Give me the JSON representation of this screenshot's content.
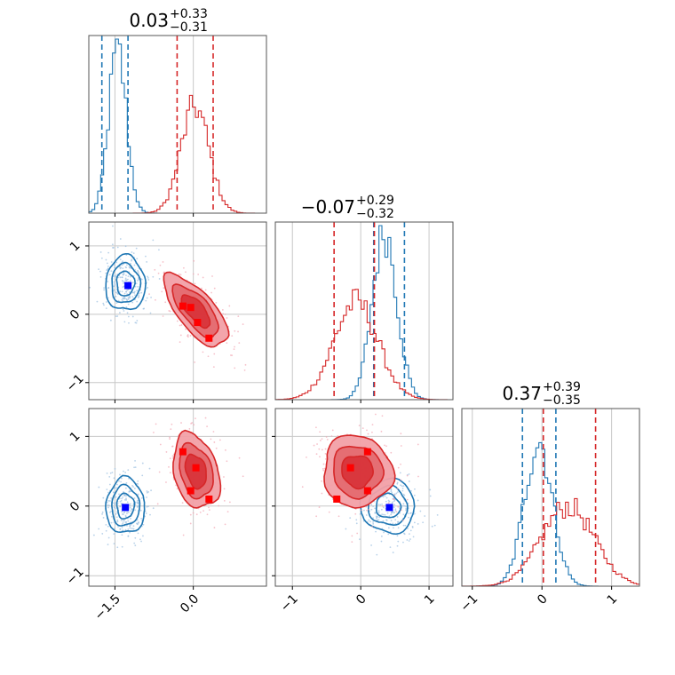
{
  "chart_data": {
    "type": "corner",
    "series": [
      {
        "name": "",
        "color": "#1f77b4",
        "marker_color": "#0000ff"
      },
      {
        "name": "",
        "color": "#d62728",
        "marker_color": "#ff0000"
      }
    ],
    "params": [
      {
        "title": {
          "median": "0.03",
          "plus": "+0.33",
          "minus": "−0.31"
        },
        "range": [
          -2.0,
          1.4
        ],
        "ticks": [
          -1.5,
          0.0
        ],
        "tick_labels": [
          "−1.5",
          "0.0"
        ],
        "quantiles": {
          "blue": [
            -1.75,
            -1.25
          ],
          "red": [
            -0.31,
            0.38
          ]
        }
      },
      {
        "title": {
          "median": "−0.07",
          "plus": "+0.29",
          "minus": "−0.32"
        },
        "range": [
          -1.25,
          1.35
        ],
        "ticks": [
          -1,
          0,
          1
        ],
        "tick_labels": [
          "−1",
          "0",
          "1"
        ],
        "quantiles": {
          "blue": [
            0.19,
            0.64
          ],
          "red": [
            -0.39,
            0.2
          ]
        }
      },
      {
        "title": {
          "median": "0.37",
          "plus": "+0.39",
          "minus": "−0.35"
        },
        "range": [
          -1.15,
          1.4
        ],
        "ticks": [
          -1,
          0,
          1
        ],
        "tick_labels": [
          "−1",
          "0",
          "1"
        ],
        "quantiles": {
          "blue": [
            -0.28,
            0.2
          ],
          "red": [
            0.02,
            0.77
          ]
        }
      }
    ],
    "marginals": [
      {
        "blue": {
          "mean": -1.45,
          "sd": 0.17,
          "peak": 0.92
        },
        "red": {
          "mean": 0.03,
          "sd": 0.27,
          "peak": 0.6
        }
      },
      {
        "blue": {
          "mean": 0.35,
          "sd": 0.18,
          "peak": 0.95
        },
        "red": {
          "mean": -0.07,
          "sd": 0.32,
          "peak": 0.55
        }
      },
      {
        "blue": {
          "mean": -0.05,
          "sd": 0.2,
          "peak": 0.82
        },
        "red": {
          "mean": 0.37,
          "sd": 0.38,
          "peak": 0.45
        }
      }
    ],
    "contours": [
      {
        "row": 1,
        "col": 0,
        "blue": {
          "cx": -1.3,
          "cy": 0.45,
          "rx": 0.38,
          "ry": 0.4,
          "rot": 0
        },
        "red": {
          "cx": 0.05,
          "cy": 0.05,
          "rx": 0.35,
          "ry": 0.65,
          "rot": -40
        }
      },
      {
        "row": 2,
        "col": 0,
        "blue": {
          "cx": -1.3,
          "cy": 0.0,
          "rx": 0.37,
          "ry": 0.4,
          "rot": 0
        },
        "red": {
          "cx": 0.05,
          "cy": 0.5,
          "rx": 0.42,
          "ry": 0.55,
          "rot": -15
        }
      },
      {
        "row": 2,
        "col": 1,
        "blue": {
          "cx": 0.4,
          "cy": 0.0,
          "rx": 0.4,
          "ry": 0.38,
          "rot": 30
        },
        "red": {
          "cx": -0.05,
          "cy": 0.5,
          "rx": 0.5,
          "ry": 0.52,
          "rot": -25
        }
      }
    ],
    "markers": [
      {
        "row": 1,
        "col": 0,
        "blue": [
          [
            -1.25,
            0.42
          ]
        ],
        "red": [
          [
            -0.2,
            0.12
          ],
          [
            -0.05,
            0.1
          ],
          [
            0.08,
            -0.12
          ],
          [
            0.3,
            -0.35
          ]
        ]
      },
      {
        "row": 2,
        "col": 0,
        "blue": [
          [
            -1.3,
            -0.02
          ]
        ],
        "red": [
          [
            -0.2,
            0.78
          ],
          [
            0.05,
            0.55
          ],
          [
            -0.05,
            0.22
          ],
          [
            0.3,
            0.1
          ]
        ]
      },
      {
        "row": 2,
        "col": 1,
        "blue": [
          [
            0.42,
            -0.02
          ]
        ],
        "red": [
          [
            -0.35,
            0.1
          ],
          [
            -0.15,
            0.55
          ],
          [
            0.1,
            0.78
          ],
          [
            0.1,
            0.22
          ]
        ]
      }
    ],
    "grid": true,
    "xlabel": "",
    "ylabel": ""
  }
}
